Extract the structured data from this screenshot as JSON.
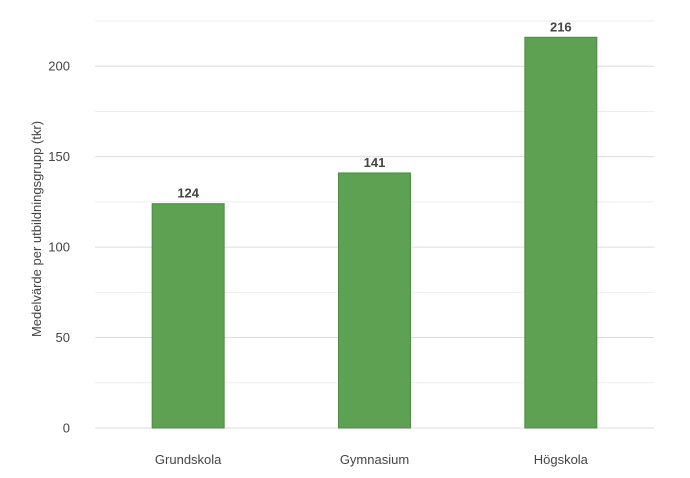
{
  "chart_data": {
    "type": "bar",
    "categories": [
      "Grundskola",
      "Gymnasium",
      "Högskola"
    ],
    "values": [
      124,
      141,
      216
    ],
    "data_labels": [
      "124",
      "141",
      "216"
    ],
    "title": "",
    "xlabel": "",
    "ylabel": "Medelvärde per utbildningsgrupp (tkr)",
    "ylim": [
      0,
      225
    ],
    "yticks": [
      0,
      50,
      100,
      150,
      200
    ],
    "grid": true,
    "legend": "none",
    "bar_color": "#5ea152",
    "bar_edge_color": "#4e8a43"
  }
}
